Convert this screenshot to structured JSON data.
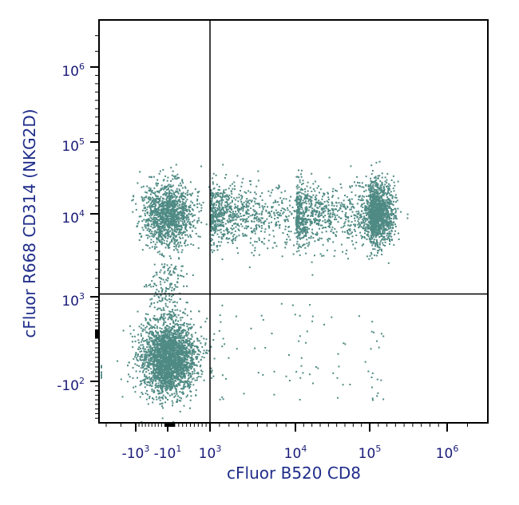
{
  "chart_data": {
    "type": "scatter",
    "title": "",
    "xlabel": "cFluor B520 CD8",
    "ylabel": "cFluor R668 CD314 (NKG2D)",
    "x_scale": "biexponential",
    "y_scale": "biexponential",
    "point_color": "#4f8a84",
    "axis_color": "#000000",
    "label_color": "#1f2d8a",
    "x_ticks": [
      {
        "value": -1000,
        "base": "-10",
        "exp": "3"
      },
      {
        "value": -10,
        "base": "-10",
        "exp": "1"
      },
      {
        "value": 1000,
        "base": "10",
        "exp": "3"
      },
      {
        "value": 10000,
        "base": "10",
        "exp": "4"
      },
      {
        "value": 100000,
        "base": "10",
        "exp": "5"
      },
      {
        "value": 1000000,
        "base": "10",
        "exp": "6"
      }
    ],
    "y_ticks": [
      {
        "value": -100,
        "base": "-10",
        "exp": "2"
      },
      {
        "value": 1000,
        "base": "10",
        "exp": "3"
      },
      {
        "value": 10000,
        "base": "10",
        "exp": "4"
      },
      {
        "value": 100000,
        "base": "10",
        "exp": "5"
      },
      {
        "value": 1000000,
        "base": "10",
        "exp": "6"
      }
    ],
    "quadrant_gate": {
      "x": 1000,
      "y": 1300
    },
    "populations": [
      {
        "name": "",
        "x_center": -10,
        "y_center": -50,
        "count": 2600
      },
      {
        "name": "",
        "x_center": -10,
        "y_center": 10000,
        "count": 1300
      },
      {
        "name": "",
        "x_center": 200000,
        "y_center": 12000,
        "count": 1100
      },
      {
        "name": "",
        "x_range": [
          1000,
          200000
        ],
        "y_center": 10000,
        "count": 1800
      }
    ]
  }
}
